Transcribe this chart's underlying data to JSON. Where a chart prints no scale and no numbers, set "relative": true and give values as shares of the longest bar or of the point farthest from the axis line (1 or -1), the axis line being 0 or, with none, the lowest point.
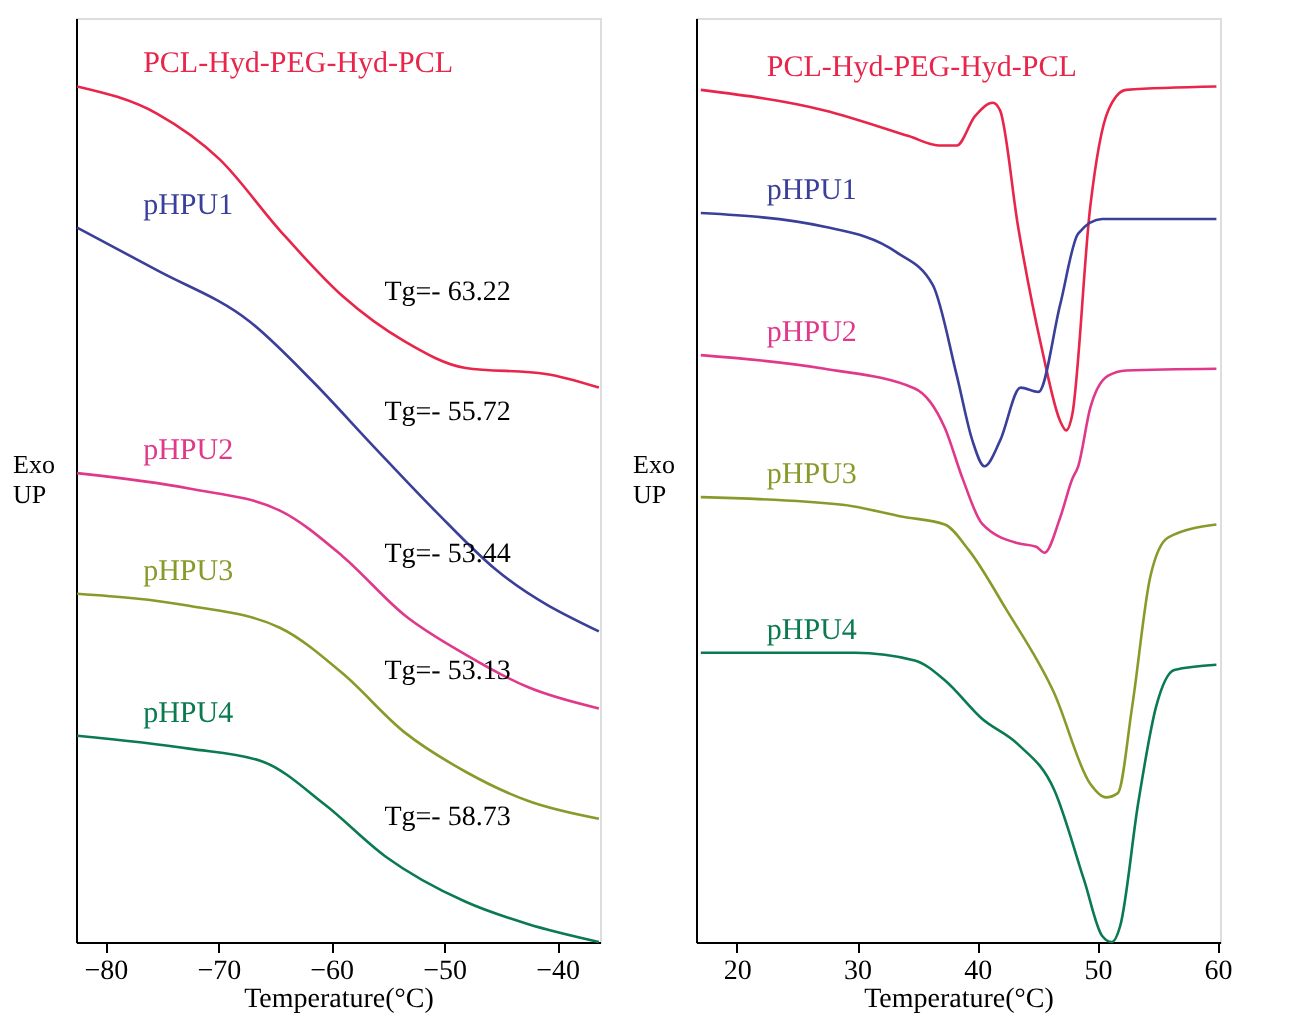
{
  "chart_data": [
    {
      "type": "line",
      "relative": true,
      "xlabel": "Temperature(°C)",
      "ylabel": "Exo UP",
      "xlim": [
        -82.6,
        -36.2
      ],
      "xticks": [
        -80,
        -70,
        -60,
        -50,
        -40
      ],
      "grid": false,
      "marker": "none",
      "line_style": "solid",
      "annotations": [
        "Tg=- 63.22",
        "Tg=- 55.72",
        "Tg=- 53.44",
        "Tg=- 53.13",
        "Tg=- 58.73"
      ],
      "series": [
        {
          "name": "PCL-Hyd-PEG-Hyd-PCL",
          "color": "#e8254a",
          "x": [
            -82.5,
            -75.4,
            -69.9,
            -64.5,
            -59.0,
            -53.5,
            -48.1,
            -41.0,
            -36.3
          ],
          "values": [
            1,
            0.968,
            0.915,
            0.831,
            0.755,
            0.702,
            0.671,
            0.664,
            0.648
          ]
        },
        {
          "name": "pHPU1",
          "color": "#3a3f9a",
          "x": [
            -82.5,
            -75.4,
            -67.2,
            -61.7,
            -56.3,
            -50.8,
            -45.4,
            -36.3
          ],
          "values": [
            0.835,
            0.785,
            0.725,
            0.656,
            0.58,
            0.504,
            0.435,
            0.363
          ]
        },
        {
          "name": "pHPU2",
          "color": "#e0388a",
          "x": [
            -82.5,
            -72.6,
            -64.5,
            -59.0,
            -53.5,
            -48.1,
            -42.6,
            -36.3
          ],
          "values": [
            0.548,
            0.53,
            0.504,
            0.451,
            0.382,
            0.336,
            0.298,
            0.273
          ]
        },
        {
          "name": "pHPU3",
          "color": "#8a9a2a",
          "x": [
            -82.5,
            -72.6,
            -64.5,
            -59.0,
            -53.5,
            -48.1,
            -42.6,
            -36.3
          ],
          "values": [
            0.407,
            0.393,
            0.367,
            0.314,
            0.245,
            0.199,
            0.165,
            0.144
          ]
        },
        {
          "name": "pHPU4",
          "color": "#0a7a50",
          "x": [
            -82.5,
            -72.6,
            -66.1,
            -60.6,
            -55.2,
            -48.1,
            -42.6,
            -36.3
          ],
          "values": [
            0.241,
            0.226,
            0.211,
            0.161,
            0.1,
            0.047,
            0.021,
            0
          ]
        }
      ]
    },
    {
      "type": "line",
      "relative": true,
      "xlabel": "Temperature(°C)",
      "ylabel": "Exo UP",
      "xlim": [
        16.6,
        60.2
      ],
      "xticks": [
        20,
        30,
        40,
        50,
        60
      ],
      "grid": false,
      "marker": "none",
      "line_style": "solid",
      "series": [
        {
          "name": "PCL-Hyd-PEG-Hyd-PCL",
          "color": "#e8254a",
          "x": [
            17.0,
            27.3,
            34.3,
            36.8,
            38.3,
            39.8,
            41.3,
            41.9,
            43.4,
            45.4,
            46.9,
            47.4,
            47.9,
            49.4,
            50.9,
            52.4,
            59.9
          ],
          "values": [
            0.996,
            0.972,
            0.942,
            0.931,
            0.931,
            0.965,
            0.981,
            0.972,
            0.836,
            0.692,
            0.609,
            0.598,
            0.616,
            0.859,
            0.972,
            0.996,
            1
          ]
        },
        {
          "name": "pHPU1",
          "color": "#3a3f9a",
          "x": [
            17.0,
            27.3,
            33.3,
            36.3,
            38.3,
            39.6,
            40.6,
            41.9,
            43.6,
            45.1,
            46.9,
            48.4,
            50.4,
            59.9
          ],
          "values": [
            0.852,
            0.836,
            0.806,
            0.768,
            0.662,
            0.586,
            0.556,
            0.586,
            0.648,
            0.643,
            0.745,
            0.828,
            0.845,
            0.845
          ]
        },
        {
          "name": "pHPU2",
          "color": "#e0388a",
          "x": [
            17.0,
            27.3,
            34.8,
            37.3,
            38.8,
            40.4,
            43.4,
            44.9,
            45.6,
            46.9,
            47.9,
            48.4,
            49.4,
            50.9,
            52.4,
            59.9
          ],
          "values": [
            0.686,
            0.67,
            0.647,
            0.601,
            0.541,
            0.489,
            0.466,
            0.462,
            0.455,
            0.496,
            0.541,
            0.556,
            0.624,
            0.662,
            0.668,
            0.67
          ]
        },
        {
          "name": "pHPU3",
          "color": "#8a9a2a",
          "x": [
            17.0,
            28.8,
            33.8,
            37.3,
            39.3,
            42.4,
            46.4,
            49.4,
            50.7,
            51.7,
            52.9,
            54.4,
            55.9,
            59.9
          ],
          "values": [
            0.52,
            0.511,
            0.497,
            0.488,
            0.458,
            0.389,
            0.291,
            0.185,
            0.169,
            0.174,
            0.276,
            0.427,
            0.473,
            0.488
          ]
        },
        {
          "name": "pHPU4",
          "color": "#0a7a50",
          "x": [
            17.0,
            29.8,
            34.8,
            37.3,
            40.4,
            43.4,
            46.4,
            48.9,
            50.4,
            51.2,
            51.9,
            53.4,
            54.9,
            56.4,
            59.9
          ],
          "values": [
            0.338,
            0.338,
            0.329,
            0.306,
            0.261,
            0.231,
            0.178,
            0.072,
            0.007,
            0,
            0.019,
            0.163,
            0.276,
            0.318,
            0.324
          ]
        }
      ]
    }
  ]
}
